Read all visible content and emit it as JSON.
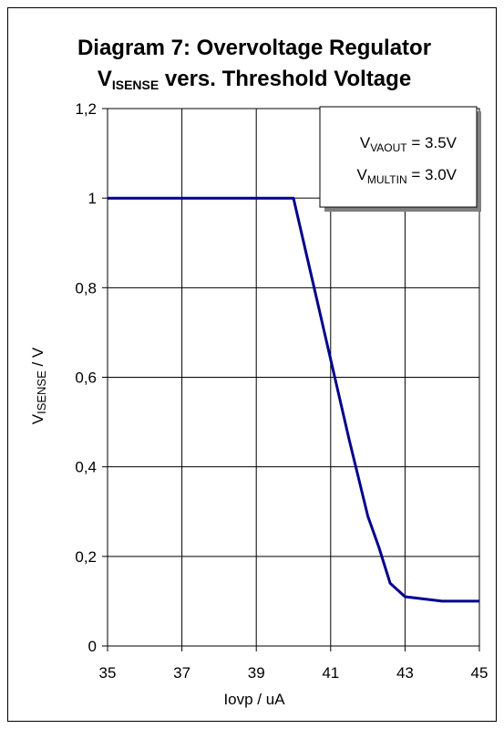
{
  "chart_data": {
    "type": "line",
    "title_line1": "Diagram 7: Overvoltage Regulator",
    "title_line2_sym": "V",
    "title_line2_sub": "ISENSE",
    "title_line2_rest": " vers. Threshold Voltage",
    "xlabel": "Iovp / uA",
    "ylabel_sym": "V",
    "ylabel_sub": "ISENSE",
    "ylabel_rest": " / V",
    "xlim": [
      35,
      45
    ],
    "ylim": [
      0,
      1.2
    ],
    "xticks": [
      35,
      37,
      39,
      41,
      43,
      45
    ],
    "yticks": [
      0,
      0.2,
      0.4,
      0.6,
      0.8,
      1,
      1.2
    ],
    "ytick_labels": [
      "0",
      "0,2",
      "0,4",
      "0,6",
      "0,8",
      "1",
      "1,2"
    ],
    "grid": true,
    "line_color": "#00008B",
    "series": [
      {
        "x": [
          35,
          40,
          40.5,
          41,
          41.5,
          42,
          42.3,
          42.6,
          43,
          44,
          45
        ],
        "y": [
          1.0,
          1.0,
          0.82,
          0.64,
          0.46,
          0.29,
          0.22,
          0.14,
          0.11,
          0.1,
          0.1
        ]
      }
    ],
    "annotation": {
      "line1_sym": "V",
      "line1_sub": "VAOUT",
      "line1_rest": " = 3.5V",
      "line2_sym": "V",
      "line2_sub": "MULTIN",
      "line2_rest": " = 3.0V",
      "placement": "top-right"
    }
  }
}
